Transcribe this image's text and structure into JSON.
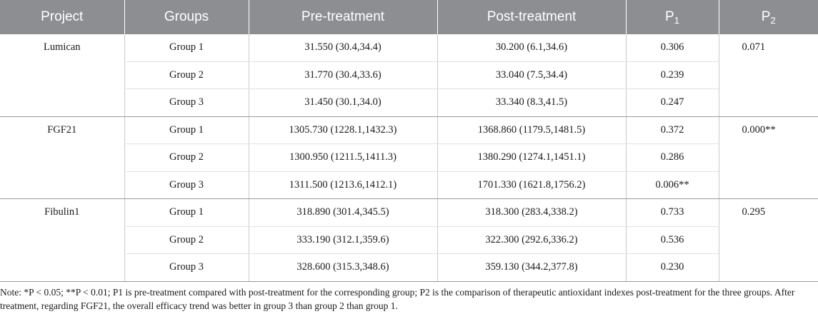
{
  "headers": {
    "project": "Project",
    "groups": "Groups",
    "pre": "Pre-treatment",
    "post": "Post-treatment",
    "p1": "P",
    "p1_sub": "1",
    "p2": "P",
    "p2_sub": "2"
  },
  "sections": [
    {
      "project": "Lumican",
      "p2": "0.071",
      "rows": [
        {
          "group": "Group 1",
          "pre": "31.550 (30.4,34.4)",
          "post": "30.200 (6.1,34.6)",
          "p1": "0.306"
        },
        {
          "group": "Group 2",
          "pre": "31.770 (30.4,33.6)",
          "post": "33.040 (7.5,34.4)",
          "p1": "0.239"
        },
        {
          "group": "Group 3",
          "pre": "31.450 (30.1,34.0)",
          "post": "33.340 (8.3,41.5)",
          "p1": "0.247"
        }
      ]
    },
    {
      "project": "FGF21",
      "p2": "0.000**",
      "rows": [
        {
          "group": "Group 1",
          "pre": "1305.730 (1228.1,1432.3)",
          "post": "1368.860 (1179.5,1481.5)",
          "p1": "0.372"
        },
        {
          "group": "Group 2",
          "pre": "1300.950 (1211.5,1411.3)",
          "post": "1380.290 (1274.1,1451.1)",
          "p1": "0.286"
        },
        {
          "group": "Group 3",
          "pre": "1311.500 (1213.6,1412.1)",
          "post": "1701.330 (1621.8,1756.2)",
          "p1": "0.006**"
        }
      ]
    },
    {
      "project": "Fibulin1",
      "p2": "0.295",
      "rows": [
        {
          "group": "Group 1",
          "pre": "318.890 (301.4,345.5)",
          "post": "318.300 (283.4,338.2)",
          "p1": "0.733"
        },
        {
          "group": "Group 2",
          "pre": "333.190 (312.1,359.6)",
          "post": "322.300 (292.6,336.2)",
          "p1": "0.536"
        },
        {
          "group": "Group 3",
          "pre": "328.600 (315.3,348.6)",
          "post": "359.130 (344.2,377.8)",
          "p1": "0.230"
        }
      ]
    }
  ],
  "note": "Note: *P < 0.05; **P < 0.01; P1 is pre-treatment compared with post-treatment for the corresponding group; P2 is the comparison of therapeutic antioxidant indexes post-treatment for the three groups. After treatment, regarding FGF21, the overall efficacy trend was better in group 3 than group 2 than group 1."
}
